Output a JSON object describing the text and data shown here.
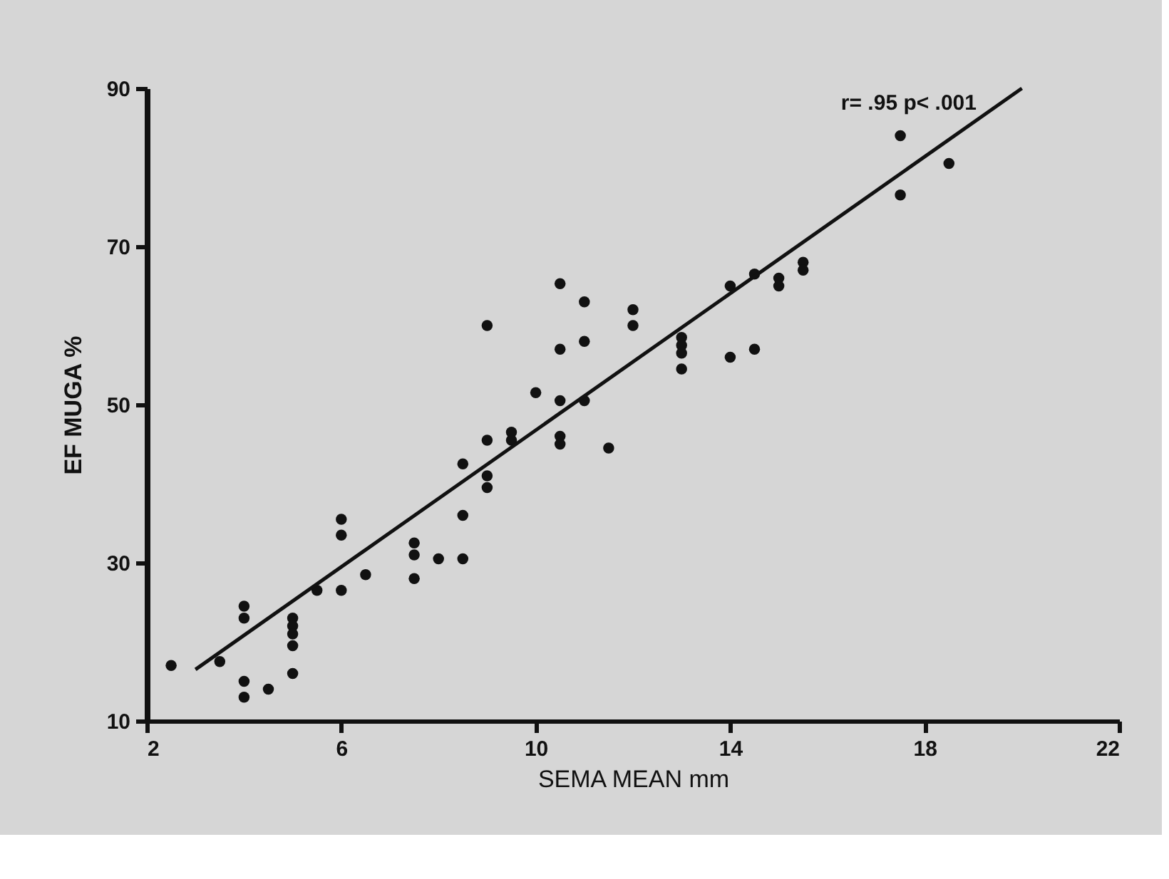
{
  "chart_data": {
    "type": "scatter",
    "xlabel": "SEMA MEAN mm",
    "ylabel": "EF MUGA %",
    "annotations": [
      "r= .95 p< .001"
    ],
    "xlim": [
      2,
      22
    ],
    "xticks": [
      2,
      6,
      10,
      14,
      18,
      22
    ],
    "ylim": [
      10,
      90
    ],
    "yticks": [
      10,
      30,
      50,
      70,
      90
    ],
    "grid": false,
    "marker": "circle",
    "series": [
      {
        "color": "#111111",
        "x": [
          2.5,
          3.5,
          4,
          4,
          4,
          4,
          4.5,
          5,
          5,
          5,
          5,
          5,
          5.5,
          6,
          6,
          6,
          6.5,
          7.5,
          7.5,
          7.5,
          8,
          8.5,
          8.5,
          8.5,
          9,
          9,
          9,
          9,
          9.5,
          9.5,
          10,
          10.5,
          10.5,
          10.5,
          10.5,
          10.5,
          11,
          11,
          11,
          11.5,
          12,
          12,
          13,
          13,
          13,
          13,
          14,
          14,
          14.5,
          14.5,
          15,
          15,
          15.5,
          15.5,
          17.5,
          17.5,
          18.5
        ],
        "values": [
          17,
          17.5,
          24.5,
          23,
          15,
          13,
          14,
          23,
          22,
          21,
          19.5,
          16,
          26.5,
          26.5,
          35.5,
          33.5,
          28.5,
          32.5,
          31,
          28,
          30.5,
          30.5,
          36,
          42.5,
          45.5,
          41,
          39.5,
          60,
          46.5,
          45.5,
          51.5,
          50.5,
          65.3,
          57,
          46,
          45,
          63,
          58,
          50.5,
          44.5,
          62,
          60,
          58.5,
          57.5,
          56.5,
          54.5,
          56,
          65,
          57,
          66.5,
          66,
          65,
          68,
          67,
          84,
          76.5,
          80.5
        ]
      },
      {
        "type": "line",
        "color": "#111111",
        "x": [
          3,
          20
        ],
        "values": [
          16.5,
          90
        ],
        "line_style": "solid",
        "marker": "none"
      }
    ]
  }
}
